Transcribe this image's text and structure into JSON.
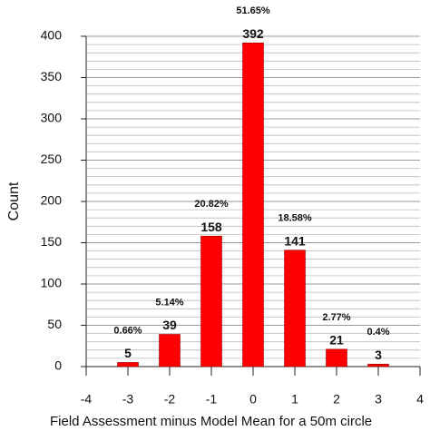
{
  "chart_data": {
    "type": "bar",
    "x": [
      -3,
      -2,
      -1,
      0,
      1,
      2,
      3
    ],
    "values": [
      5,
      39,
      158,
      392,
      141,
      21,
      3
    ],
    "percent_labels": [
      "0.66%",
      "5.14%",
      "20.82%",
      "51.65%",
      "18.58%",
      "2.77%",
      "0.4%"
    ],
    "color": "#ff0000",
    "xlim": [
      -4,
      4
    ],
    "xticks": [
      -4,
      -3,
      -2,
      -1,
      0,
      1,
      2,
      3,
      4
    ],
    "ylim": [
      0,
      400
    ],
    "yticks": [
      0,
      50,
      100,
      150,
      200,
      250,
      300,
      350,
      400
    ],
    "xlabel": "Field Assessment minus Model Mean for a 50m circle",
    "ylabel": "Count",
    "grid": true
  }
}
